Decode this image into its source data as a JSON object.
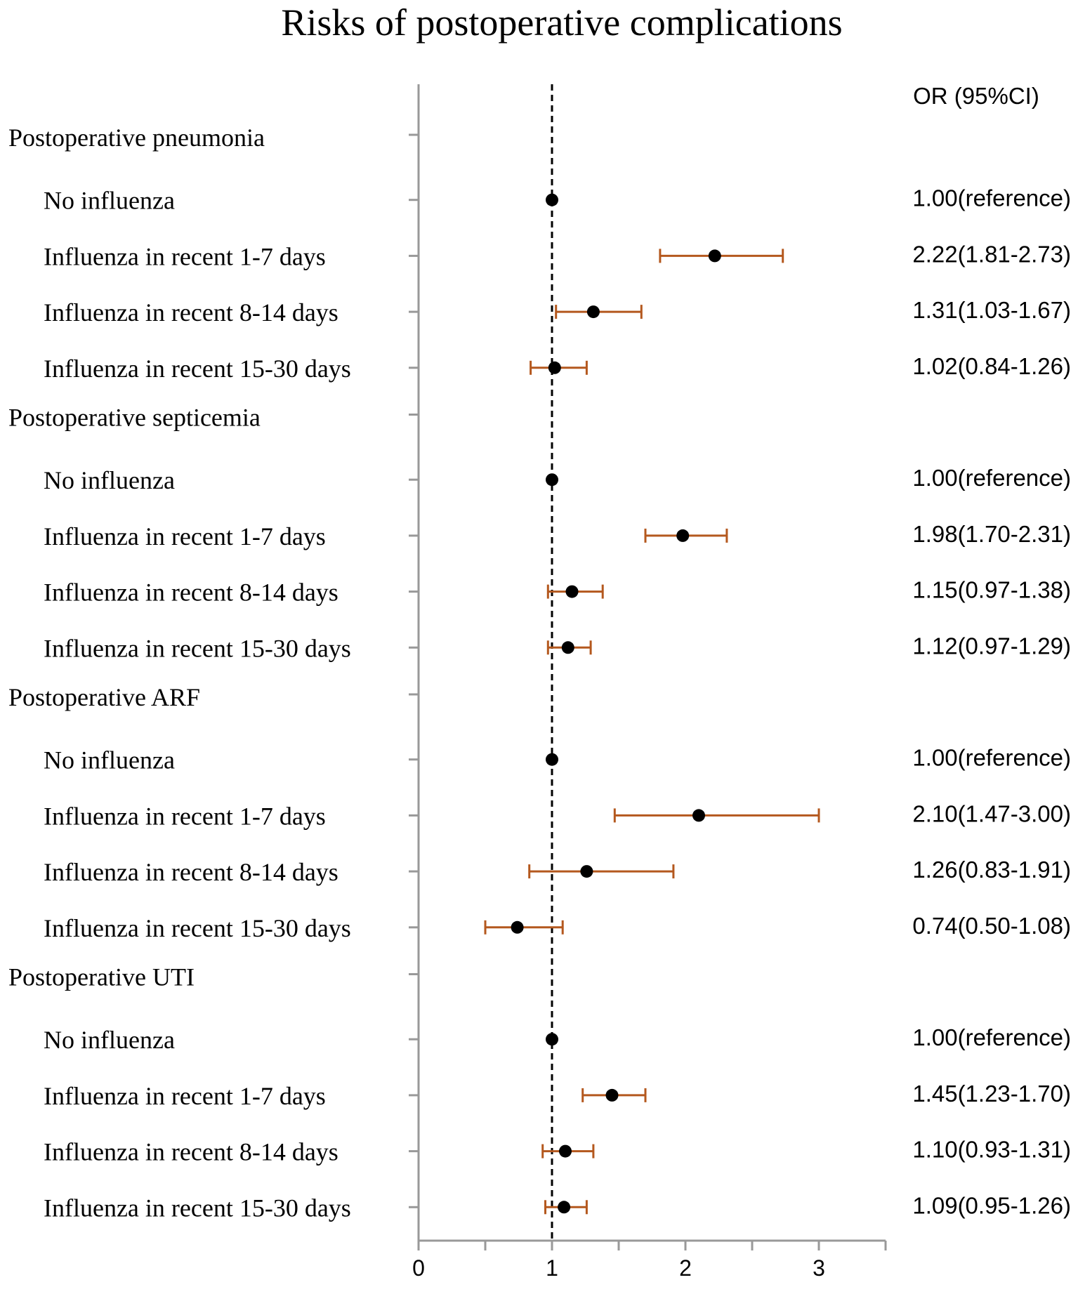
{
  "chart_data": {
    "type": "forest",
    "title": "Risks of postoperative complications",
    "ci_header": "OR (95%CI)",
    "xlim": [
      0,
      3.5
    ],
    "x_ticks": [
      0,
      1,
      2,
      3
    ],
    "reference_line": 1,
    "colors": {
      "point": "#000000",
      "ci": "#b4581e",
      "axis": "#999999",
      "ref": "#000000"
    },
    "groups": [
      {
        "name": "Postoperative pneumonia",
        "rows": [
          {
            "label": "No influenza",
            "or": 1.0,
            "lower": null,
            "upper": null,
            "text": "1.00(reference)"
          },
          {
            "label": "Influenza in recent 1-7 days",
            "or": 2.22,
            "lower": 1.81,
            "upper": 2.73,
            "text": "2.22(1.81-2.73)"
          },
          {
            "label": "Influenza in recent 8-14 days",
            "or": 1.31,
            "lower": 1.03,
            "upper": 1.67,
            "text": "1.31(1.03-1.67)"
          },
          {
            "label": "Influenza in recent 15-30 days",
            "or": 1.02,
            "lower": 0.84,
            "upper": 1.26,
            "text": "1.02(0.84-1.26)"
          }
        ]
      },
      {
        "name": "Postoperative septicemia",
        "rows": [
          {
            "label": "No influenza",
            "or": 1.0,
            "lower": null,
            "upper": null,
            "text": "1.00(reference)"
          },
          {
            "label": "Influenza in recent 1-7 days",
            "or": 1.98,
            "lower": 1.7,
            "upper": 2.31,
            "text": "1.98(1.70-2.31)"
          },
          {
            "label": "Influenza in recent 8-14 days",
            "or": 1.15,
            "lower": 0.97,
            "upper": 1.38,
            "text": "1.15(0.97-1.38)"
          },
          {
            "label": "Influenza in recent 15-30 days",
            "or": 1.12,
            "lower": 0.97,
            "upper": 1.29,
            "text": "1.12(0.97-1.29)"
          }
        ]
      },
      {
        "name": "Postoperative ARF",
        "rows": [
          {
            "label": "No influenza",
            "or": 1.0,
            "lower": null,
            "upper": null,
            "text": "1.00(reference)"
          },
          {
            "label": "Influenza in recent 1-7 days",
            "or": 2.1,
            "lower": 1.47,
            "upper": 3.0,
            "text": "2.10(1.47-3.00)"
          },
          {
            "label": "Influenza in recent 8-14 days",
            "or": 1.26,
            "lower": 0.83,
            "upper": 1.91,
            "text": "1.26(0.83-1.91)"
          },
          {
            "label": "Influenza in recent 15-30 days",
            "or": 0.74,
            "lower": 0.5,
            "upper": 1.08,
            "text": "0.74(0.50-1.08)"
          }
        ]
      },
      {
        "name": "Postoperative UTI",
        "rows": [
          {
            "label": "No influenza",
            "or": 1.0,
            "lower": null,
            "upper": null,
            "text": "1.00(reference)"
          },
          {
            "label": "Influenza in recent 1-7 days",
            "or": 1.45,
            "lower": 1.23,
            "upper": 1.7,
            "text": "1.45(1.23-1.70)"
          },
          {
            "label": "Influenza in recent 8-14 days",
            "or": 1.1,
            "lower": 0.93,
            "upper": 1.31,
            "text": "1.10(0.93-1.31)"
          },
          {
            "label": "Influenza in recent 15-30 days",
            "or": 1.09,
            "lower": 0.95,
            "upper": 1.26,
            "text": "1.09(0.95-1.26)"
          }
        ]
      }
    ]
  }
}
